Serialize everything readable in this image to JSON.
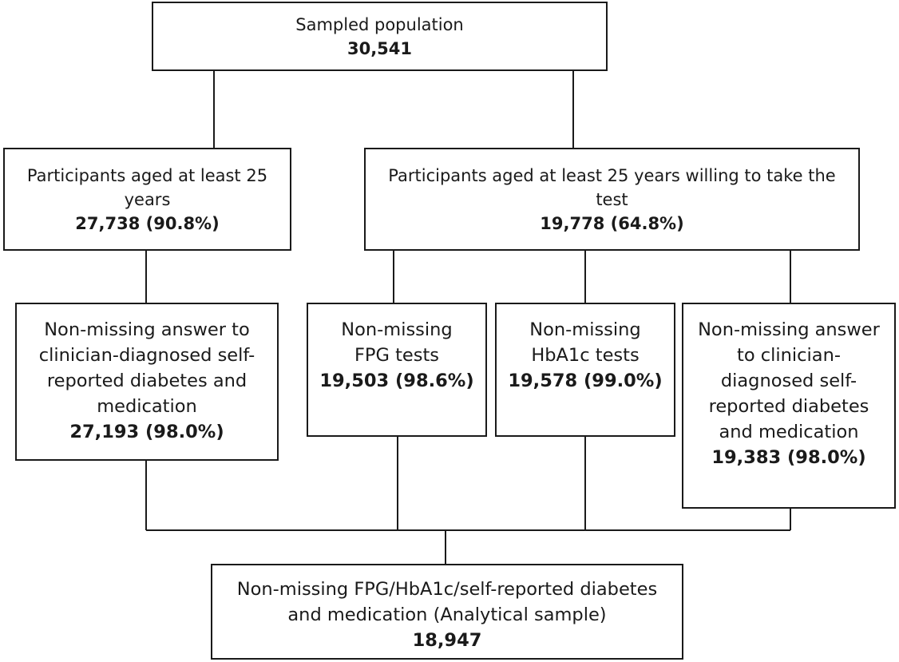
{
  "nodes": {
    "sampled": {
      "label": "Sampled population",
      "count": "30,541"
    },
    "aged25": {
      "label": "Participants aged at least 25 years",
      "count": "27,738 (90.8%)"
    },
    "willing": {
      "label": "Participants aged at least 25 years willing to take the test",
      "count": "19,778 (64.8%)"
    },
    "selfreport_a": {
      "label": "Non-missing answer to clinician-diagnosed self-reported diabetes and medication",
      "count": "27,193 (98.0%)"
    },
    "fpg": {
      "label": "Non-missing FPG tests",
      "count": "19,503 (98.6%)"
    },
    "hba1c": {
      "label": "Non-missing HbA1c tests",
      "count": "19,578 (99.0%)"
    },
    "selfreport_b": {
      "label": "Non-missing answer to clinician-diagnosed self-reported diabetes and medication",
      "count": "19,383 (98.0%)"
    },
    "analytical": {
      "label": "Non-missing FPG/HbA1c/self-reported diabetes and medication (Analytical sample)",
      "count": "18,947"
    }
  }
}
